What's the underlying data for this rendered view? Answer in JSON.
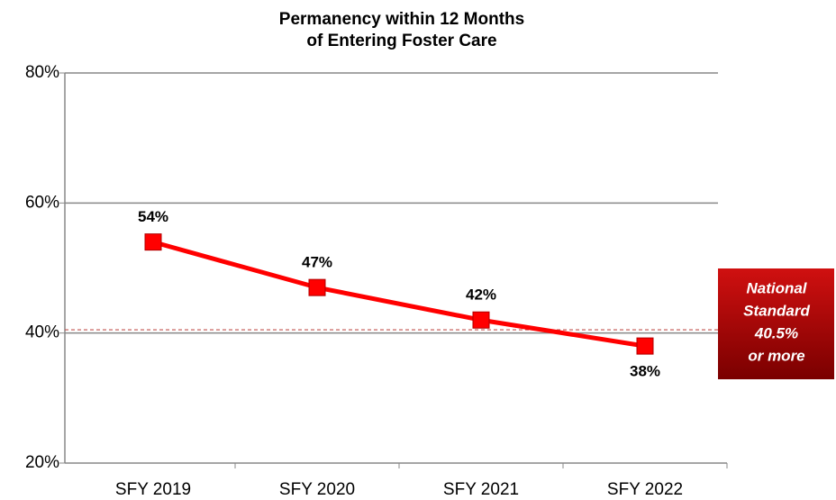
{
  "chart_data": {
    "type": "line",
    "title": [
      "Permanency within 12 Months",
      "of Entering Foster Care"
    ],
    "categories": [
      "SFY 2019",
      "SFY 2020",
      "SFY 2021",
      "SFY 2022"
    ],
    "series": [
      {
        "name": "Permanency within 12 Months",
        "color": "#ff0000",
        "values": [
          54,
          47,
          42,
          38
        ],
        "value_labels": [
          "54%",
          "47%",
          "42%",
          "38%"
        ]
      }
    ],
    "ylim": [
      20,
      80
    ],
    "yticks": [
      {
        "value": 20,
        "label": "20%"
      },
      {
        "value": 40,
        "label": "40%"
      },
      {
        "value": 60,
        "label": "60%"
      },
      {
        "value": 80,
        "label": "80%"
      }
    ],
    "grid": true,
    "reference_line": {
      "value": 40.5,
      "color": "#c0504d"
    },
    "annotation": [
      "National",
      "Standard",
      "40.5%",
      "or more"
    ]
  }
}
